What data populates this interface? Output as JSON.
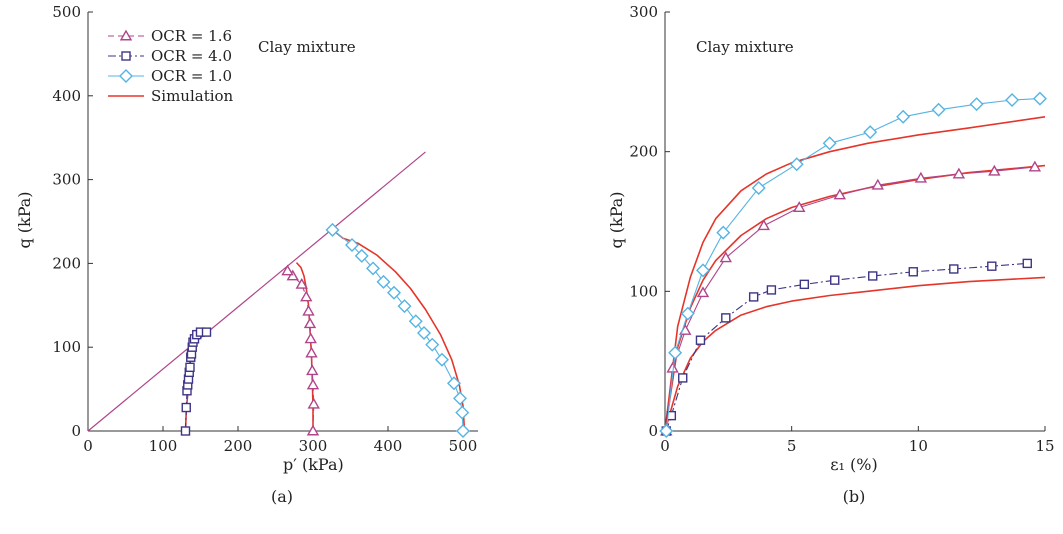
{
  "chart_data": [
    {
      "type": "line",
      "panel_label": "(a)",
      "annotation": "Clay mixture",
      "xlabel": "p′ (kPa)",
      "ylabel": "q (kPa)",
      "xlim": [
        0,
        520
      ],
      "ylim": [
        0,
        500
      ],
      "xticks": [
        0,
        100,
        200,
        300,
        400,
        500
      ],
      "yticks": [
        0,
        100,
        200,
        300,
        400,
        500
      ],
      "legend_position": "top-left",
      "reference_line": {
        "x": [
          0,
          450
        ],
        "y": [
          0,
          333
        ]
      },
      "series": [
        {
          "name": "OCR = 1.6",
          "color": "#b0458a",
          "dash": "6,4",
          "marker": "triangle",
          "x": [
            300,
            301,
            300,
            299,
            298,
            297,
            296,
            294,
            291,
            285,
            273,
            266
          ],
          "y": [
            0,
            32,
            55,
            72,
            93,
            110,
            128,
            143,
            160,
            175,
            185,
            191
          ]
        },
        {
          "name": "OCR = 4.0",
          "color": "#3d3585",
          "dash": "8,3,2,3",
          "marker": "square",
          "x": [
            130,
            131,
            132,
            133,
            134,
            135,
            136,
            137,
            138,
            139,
            140,
            142,
            145,
            150,
            158
          ],
          "y": [
            0,
            28,
            48,
            55,
            62,
            70,
            76,
            88,
            92,
            100,
            106,
            110,
            115,
            118,
            118
          ]
        },
        {
          "name": "OCR = 1.0",
          "color": "#55b4e2",
          "dash": "",
          "marker": "diamond",
          "x": [
            326,
            352,
            365,
            380,
            394,
            408,
            422,
            437,
            448,
            459,
            472,
            488,
            496,
            499,
            500
          ],
          "y": [
            240,
            222,
            209,
            194,
            178,
            165,
            149,
            131,
            117,
            103,
            85,
            57,
            39,
            22,
            0
          ]
        },
        {
          "name": "Simulation",
          "color": "#e5352a",
          "dash": "",
          "marker": "none",
          "segments": [
            {
              "x": [
                130,
                131,
                133,
                134,
                135,
                137,
                140,
                143,
                146
              ],
              "y": [
                0,
                25,
                45,
                60,
                75,
                90,
                100,
                110,
                116
              ]
            },
            {
              "x": [
                300,
                300,
                299,
                298,
                296,
                294,
                291,
                288,
                284,
                278
              ],
              "y": [
                0,
                30,
                60,
                90,
                120,
                150,
                170,
                185,
                195,
                201
              ]
            },
            {
              "x": [
                326,
                340,
                360,
                385,
                410,
                430,
                450,
                470,
                485,
                495,
                500,
                502
              ],
              "y": [
                240,
                230,
                224,
                210,
                190,
                170,
                145,
                115,
                85,
                55,
                30,
                0
              ]
            }
          ]
        }
      ]
    },
    {
      "type": "line",
      "panel_label": "(b)",
      "annotation": "Clay mixture",
      "xlabel": "ε₁ (%)",
      "ylabel": "q (kPa)",
      "xlim": [
        0,
        15
      ],
      "ylim": [
        0,
        300
      ],
      "xticks": [
        0,
        5,
        10,
        15
      ],
      "yticks": [
        0,
        100,
        200,
        300
      ],
      "series": [
        {
          "name": "OCR = 1.6",
          "color": "#b0458a",
          "dash": "",
          "marker": "triangle",
          "x": [
            0.05,
            0.3,
            0.8,
            1.5,
            2.4,
            3.9,
            5.3,
            6.9,
            8.4,
            10.1,
            11.6,
            13.0,
            14.6
          ],
          "y": [
            0,
            45,
            72,
            99,
            124,
            147,
            160,
            169,
            176,
            181,
            184,
            186,
            189
          ]
        },
        {
          "name": "OCR = 4.0",
          "color": "#3d3585",
          "dash": "8,3,2,3",
          "marker": "square",
          "x": [
            0.05,
            0.25,
            0.7,
            1.4,
            2.4,
            3.5,
            4.2,
            5.5,
            6.7,
            8.2,
            9.8,
            11.4,
            12.9,
            14.3
          ],
          "y": [
            0,
            11,
            38,
            65,
            81,
            96,
            101,
            105,
            108,
            111,
            114,
            116,
            118,
            120
          ]
        },
        {
          "name": "OCR = 1.0",
          "color": "#55b4e2",
          "dash": "",
          "marker": "diamond",
          "x": [
            0.05,
            0.4,
            0.9,
            1.5,
            2.3,
            3.7,
            5.2,
            6.5,
            8.1,
            9.4,
            10.8,
            12.3,
            13.7,
            14.8
          ],
          "y": [
            0,
            56,
            84,
            115,
            142,
            174,
            191,
            206,
            214,
            225,
            230,
            234,
            237,
            238
          ]
        },
        {
          "name": "Simulation",
          "color": "#e5352a",
          "dash": "",
          "marker": "none",
          "segments": [
            {
              "x": [
                0,
                0.5,
                1,
                1.5,
                2,
                3,
                4,
                5,
                6.5,
                8,
                10,
                12,
                15
              ],
              "y": [
                0,
                75,
                110,
                135,
                152,
                172,
                184,
                192,
                200,
                206,
                212,
                217,
                225
              ]
            },
            {
              "x": [
                0,
                0.5,
                1,
                1.5,
                2,
                3,
                4,
                5,
                6.5,
                8,
                10,
                12,
                15
              ],
              "y": [
                0,
                60,
                88,
                108,
                122,
                140,
                152,
                160,
                168,
                174,
                180,
                185,
                190
              ]
            },
            {
              "x": [
                0,
                0.5,
                1,
                1.5,
                2,
                3,
                4,
                5,
                6.5,
                8,
                10,
                12,
                15
              ],
              "y": [
                0,
                32,
                52,
                64,
                72,
                83,
                89,
                93,
                97,
                100,
                104,
                107,
                110
              ]
            }
          ]
        }
      ]
    }
  ]
}
